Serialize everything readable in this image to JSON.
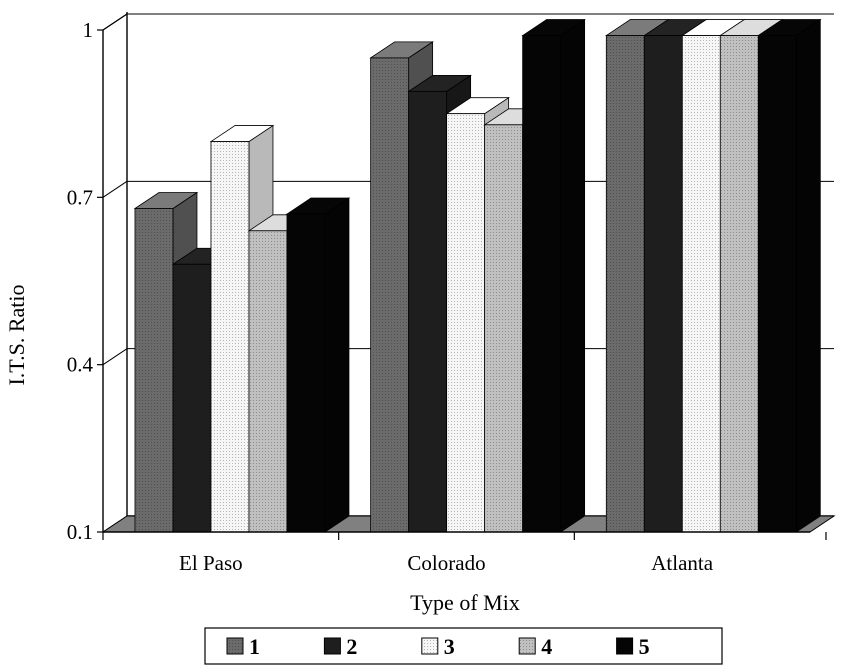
{
  "chart_data": {
    "type": "bar",
    "title": "",
    "xlabel": "Type of Mix",
    "ylabel": "I.T.S. Ratio",
    "categories": [
      "El Paso",
      "Colorado",
      "Atlanta"
    ],
    "series": [
      {
        "name": "1",
        "values": [
          0.68,
          0.95,
          0.99
        ]
      },
      {
        "name": "2",
        "values": [
          0.58,
          0.89,
          0.99
        ]
      },
      {
        "name": "3",
        "values": [
          0.8,
          0.85,
          0.99
        ]
      },
      {
        "name": "4",
        "values": [
          0.64,
          0.83,
          0.99
        ]
      },
      {
        "name": "5",
        "values": [
          0.67,
          0.99,
          0.99
        ]
      }
    ],
    "ylim": [
      0.1,
      1.0
    ],
    "yticks": [
      {
        "value": 0.1,
        "label": "0.1"
      },
      {
        "value": 0.4,
        "label": "0.4"
      },
      {
        "value": 0.7,
        "label": "0.7"
      },
      {
        "value": 1.0,
        "label": "1"
      }
    ],
    "grid": true,
    "legend": "bottom",
    "three_d": true
  },
  "colors": {
    "series": [
      "#6b6b6b",
      "#1e1e1e",
      "#f6f6f6",
      "#c0c0c0",
      "#050505"
    ],
    "floor": "#808080",
    "grid": "#000000"
  }
}
